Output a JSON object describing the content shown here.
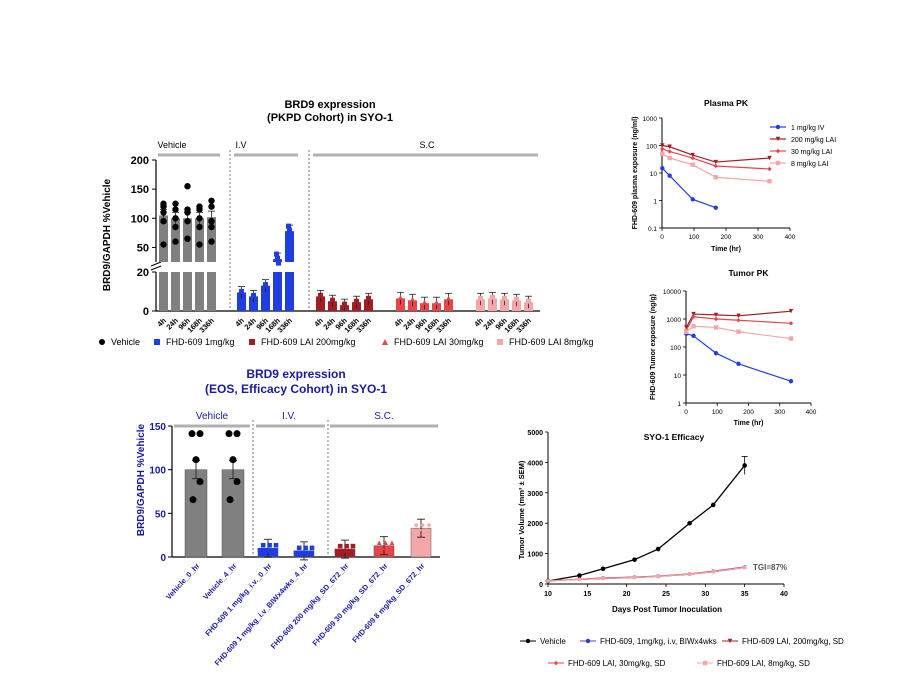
{
  "colors": {
    "vehicle": "#000000",
    "iv": "#1f3de0",
    "lai200": "#a31d24",
    "lai30": "#e8454a",
    "lai8": "#f4a6a8",
    "grey": "#7f7f7f",
    "bar_grey": "#808080",
    "navy": "#1a1aa0",
    "purple": "#7b2fbe"
  },
  "chart_data": [
    {
      "id": "pkpd",
      "type": "bar",
      "title_line1": "BRD9 expression",
      "title_line2": "(PKPD Cohort) in SYO-1",
      "ylabel": "BRD9/GAPDH %Vehicle",
      "yticks_upper": [
        "50",
        "100",
        "150",
        "200"
      ],
      "yticks_lower": [
        "0",
        "20"
      ],
      "upper_range": [
        25,
        200
      ],
      "lower_range": [
        0,
        20
      ],
      "groups": [
        {
          "name": "Vehicle",
          "header": "Vehicle",
          "values": [
            105,
            100,
            100,
            100,
            102
          ]
        },
        {
          "name": "FHD-609 1mg/kg",
          "header": "I.V",
          "values": [
            9.5,
            7.5,
            13,
            30,
            78
          ]
        },
        {
          "name": "FHD-609 LAI 200mg/kg",
          "header": "S.C",
          "values": [
            7.5,
            5,
            3,
            4.5,
            6
          ]
        },
        {
          "name": "FHD-609 LAI 30mg/kg",
          "header": "",
          "values": [
            6.5,
            5.5,
            4,
            4,
            6
          ]
        },
        {
          "name": "FHD-609 LAI 8mg/kg",
          "header": "",
          "values": [
            6,
            6.5,
            6,
            5.5,
            4.5
          ]
        }
      ],
      "categories": [
        "4h",
        "24h",
        "96h",
        "168h",
        "336h"
      ],
      "vehicle_points": [
        [
          95,
          110,
          120,
          125,
          55
        ],
        [
          100,
          115,
          125,
          85,
          60
        ],
        [
          95,
          110,
          115,
          155,
          65
        ],
        [
          100,
          115,
          120,
          85,
          55
        ],
        [
          95,
          120,
          130,
          85,
          60
        ]
      ],
      "legend": [
        "Vehicle",
        "FHD-609 1mg/kg",
        "FHD-609 LAI 200mg/kg",
        "FHD-609 LAI 30mg/kg",
        "FHD-609 LAI 8mg/kg"
      ]
    },
    {
      "id": "eos",
      "type": "bar",
      "title_line1": "BRD9 expression",
      "title_line2": "(EOS, Efficacy Cohort) in SYO-1",
      "ylabel": "BRD9/GAPDH %Vehicle",
      "ylim": [
        0,
        150
      ],
      "yticks": [
        "0",
        "50",
        "100",
        "150"
      ],
      "headers": [
        "Vehicle",
        "I.V.",
        "S.C."
      ],
      "categories": [
        "Vehicle_0_hr",
        "Vehicle_4_hr",
        "FHD-609 1 mg/kg_i.v._0_hr",
        "FHD-609 1 mg/kg_i.v_BIWx4wks_4_hr",
        "FHD-609 200 mg/kg_SD_672_hr",
        "FHD-609 30 mg/kg_SD_672_hr",
        "FHD-609 8 mg/kg_SD_672_hr"
      ],
      "values": [
        100,
        100,
        10,
        7,
        9,
        13,
        33
      ]
    },
    {
      "id": "plasma",
      "type": "line",
      "title": "Plasma PK",
      "xlabel": "Time (hr)",
      "ylabel": "FHD-609 plasma exposure (ng/ml)",
      "xlim": [
        0,
        400
      ],
      "xticks": [
        "0",
        "100",
        "200",
        "300",
        "400"
      ],
      "yticks": [
        "0.1",
        "1",
        "10",
        "100",
        "1000"
      ],
      "yscale": "log",
      "series": [
        {
          "name": "1 mg/kg IV",
          "x": [
            1,
            24,
            96,
            168
          ],
          "y": [
            15,
            8,
            1.1,
            0.55
          ]
        },
        {
          "name": "200 mg/kg LAI",
          "x": [
            1,
            24,
            96,
            168,
            336
          ],
          "y": [
            100,
            90,
            45,
            25,
            35
          ]
        },
        {
          "name": "30 mg/kg LAI",
          "x": [
            1,
            24,
            96,
            168,
            336
          ],
          "y": [
            75,
            60,
            35,
            18,
            14
          ]
        },
        {
          "name": "8 mg/kg LAI",
          "x": [
            1,
            24,
            96,
            168,
            336
          ],
          "y": [
            50,
            35,
            20,
            7,
            5
          ]
        }
      ]
    },
    {
      "id": "tumor",
      "type": "line",
      "title": "Tumor PK",
      "xlabel": "Time (hr)",
      "ylabel": "FHD-609 Tumor exposure (ng/g)",
      "xlim": [
        0,
        400
      ],
      "xticks": [
        "0",
        "100",
        "200",
        "300",
        "400"
      ],
      "yticks": [
        "1",
        "10",
        "100",
        "1000",
        "10000"
      ],
      "yscale": "log",
      "series": [
        {
          "name": "1 mg/kg IV",
          "x": [
            1,
            24,
            96,
            168,
            336
          ],
          "y": [
            300,
            250,
            60,
            25,
            6
          ]
        },
        {
          "name": "200 mg/kg LAI",
          "x": [
            1,
            24,
            96,
            168,
            336
          ],
          "y": [
            500,
            1500,
            1400,
            1300,
            1900
          ]
        },
        {
          "name": "30 mg/kg LAI",
          "x": [
            1,
            24,
            96,
            168,
            336
          ],
          "y": [
            400,
            1200,
            1000,
            900,
            700
          ]
        },
        {
          "name": "8 mg/kg LAI",
          "x": [
            1,
            24,
            96,
            168,
            336
          ],
          "y": [
            350,
            550,
            500,
            350,
            200
          ]
        }
      ]
    },
    {
      "id": "efficacy",
      "type": "line",
      "title": "SYO-1 Efficacy",
      "xlabel": "Days Post Tumor Inoculation",
      "ylabel": "Tumor Volume (mm³ ± SEM)",
      "xlim": [
        10,
        40
      ],
      "ylim": [
        0,
        5000
      ],
      "xticks": [
        "10",
        "15",
        "20",
        "25",
        "30",
        "35",
        "40"
      ],
      "yticks": [
        "0",
        "1000",
        "2000",
        "3000",
        "4000",
        "5000"
      ],
      "annotation": "TGI=87%",
      "series": [
        {
          "name": "Vehicle",
          "x": [
            10,
            14,
            17,
            21,
            24,
            28,
            31,
            35
          ],
          "y": [
            100,
            280,
            500,
            800,
            1150,
            2000,
            2600,
            3900
          ]
        },
        {
          "name": "FHD-609, 1mg/kg, i.v, BIWx4wks",
          "x": [
            10,
            14,
            17,
            21,
            24,
            28,
            31,
            35
          ],
          "y": [
            100,
            160,
            200,
            230,
            260,
            330,
            420,
            560
          ]
        },
        {
          "name": "FHD-609 LAI, 200mg/kg, SD",
          "x": [
            10,
            14,
            17,
            21,
            24,
            28,
            31,
            35
          ],
          "y": [
            100,
            150,
            180,
            210,
            250,
            320,
            400,
            540
          ]
        },
        {
          "name": "FHD-609 LAI, 30mg/kg, SD",
          "x": [
            10,
            14,
            17,
            21,
            24,
            28,
            31,
            35
          ],
          "y": [
            100,
            155,
            190,
            220,
            255,
            330,
            410,
            550
          ]
        },
        {
          "name": "FHD-609 LAI, 8mg/kg, SD",
          "x": [
            10,
            14,
            17,
            21,
            24,
            28,
            31,
            35
          ],
          "y": [
            100,
            150,
            185,
            215,
            250,
            325,
            405,
            545
          ]
        }
      ]
    }
  ]
}
